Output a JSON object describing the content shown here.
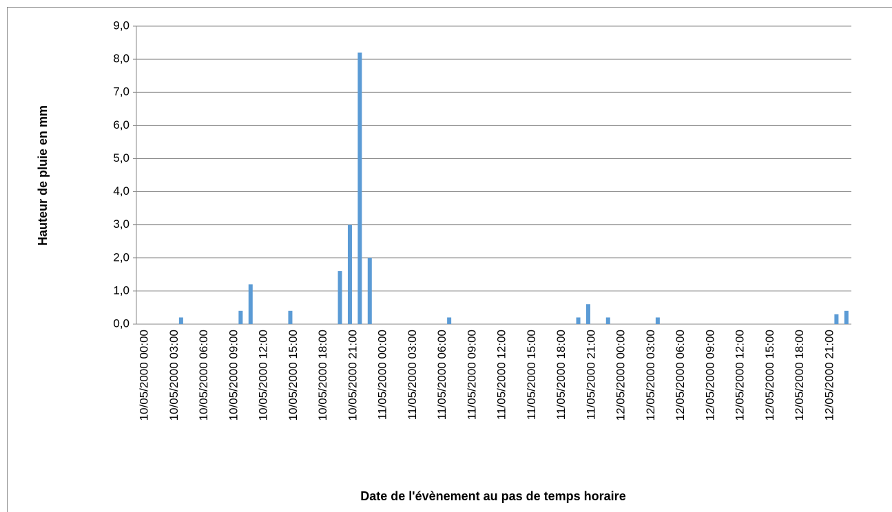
{
  "chart_data": {
    "type": "bar",
    "x_label": "Date de l'évènement au pas de temps horaire",
    "y_label": "Hauteur de pluie en mm",
    "categories": [
      "10/05/2000 00:00",
      null,
      null,
      "10/05/2000 03:00",
      null,
      null,
      "10/05/2000 06:00",
      null,
      null,
      "10/05/2000 09:00",
      null,
      null,
      "10/05/2000 12:00",
      null,
      null,
      "10/05/2000 15:00",
      null,
      null,
      "10/05/2000 18:00",
      null,
      null,
      "10/05/2000 21:00",
      null,
      null,
      "11/05/2000 00:00",
      null,
      null,
      "11/05/2000 03:00",
      null,
      null,
      "11/05/2000 06:00",
      null,
      null,
      "11/05/2000 09:00",
      null,
      null,
      "11/05/2000 12:00",
      null,
      null,
      "11/05/2000 15:00",
      null,
      null,
      "11/05/2000 18:00",
      null,
      null,
      "11/05/2000 21:00",
      null,
      null,
      "12/05/2000 00:00",
      null,
      null,
      "12/05/2000 03:00",
      null,
      null,
      "12/05/2000 06:00",
      null,
      null,
      "12/05/2000 09:00",
      null,
      null,
      "12/05/2000 12:00",
      null,
      null,
      "12/05/2000 15:00",
      null,
      null,
      "12/05/2000 18:00",
      null,
      null,
      "12/05/2000 21:00",
      null,
      null
    ],
    "values": [
      0,
      0,
      0,
      0,
      0.2,
      0,
      0,
      0,
      0,
      0,
      0.4,
      1.2,
      0,
      0,
      0,
      0.4,
      0,
      0,
      0,
      0,
      1.6,
      3.0,
      8.2,
      2.0,
      0,
      0,
      0,
      0,
      0,
      0,
      0,
      0.2,
      0,
      0,
      0,
      0,
      0,
      0,
      0,
      0,
      0,
      0,
      0,
      0,
      0.2,
      0.6,
      0,
      0.2,
      0,
      0,
      0,
      0,
      0.2,
      0,
      0,
      0,
      0,
      0,
      0,
      0,
      0,
      0,
      0,
      0,
      0,
      0,
      0,
      0,
      0,
      0,
      0.3,
      0.4
    ],
    "color": "#5b9bd5",
    "ylim": [
      0,
      9
    ],
    "yticks": [
      {
        "value": 0,
        "label": "0,0"
      },
      {
        "value": 1,
        "label": "1,0"
      },
      {
        "value": 2,
        "label": "2,0"
      },
      {
        "value": 3,
        "label": "3,0"
      },
      {
        "value": 4,
        "label": "4,0"
      },
      {
        "value": 5,
        "label": "5,0"
      },
      {
        "value": 6,
        "label": "6,0"
      },
      {
        "value": 7,
        "label": "7,0"
      },
      {
        "value": 8,
        "label": "8,0"
      },
      {
        "value": 9,
        "label": "9,0"
      }
    ],
    "grid": true
  }
}
